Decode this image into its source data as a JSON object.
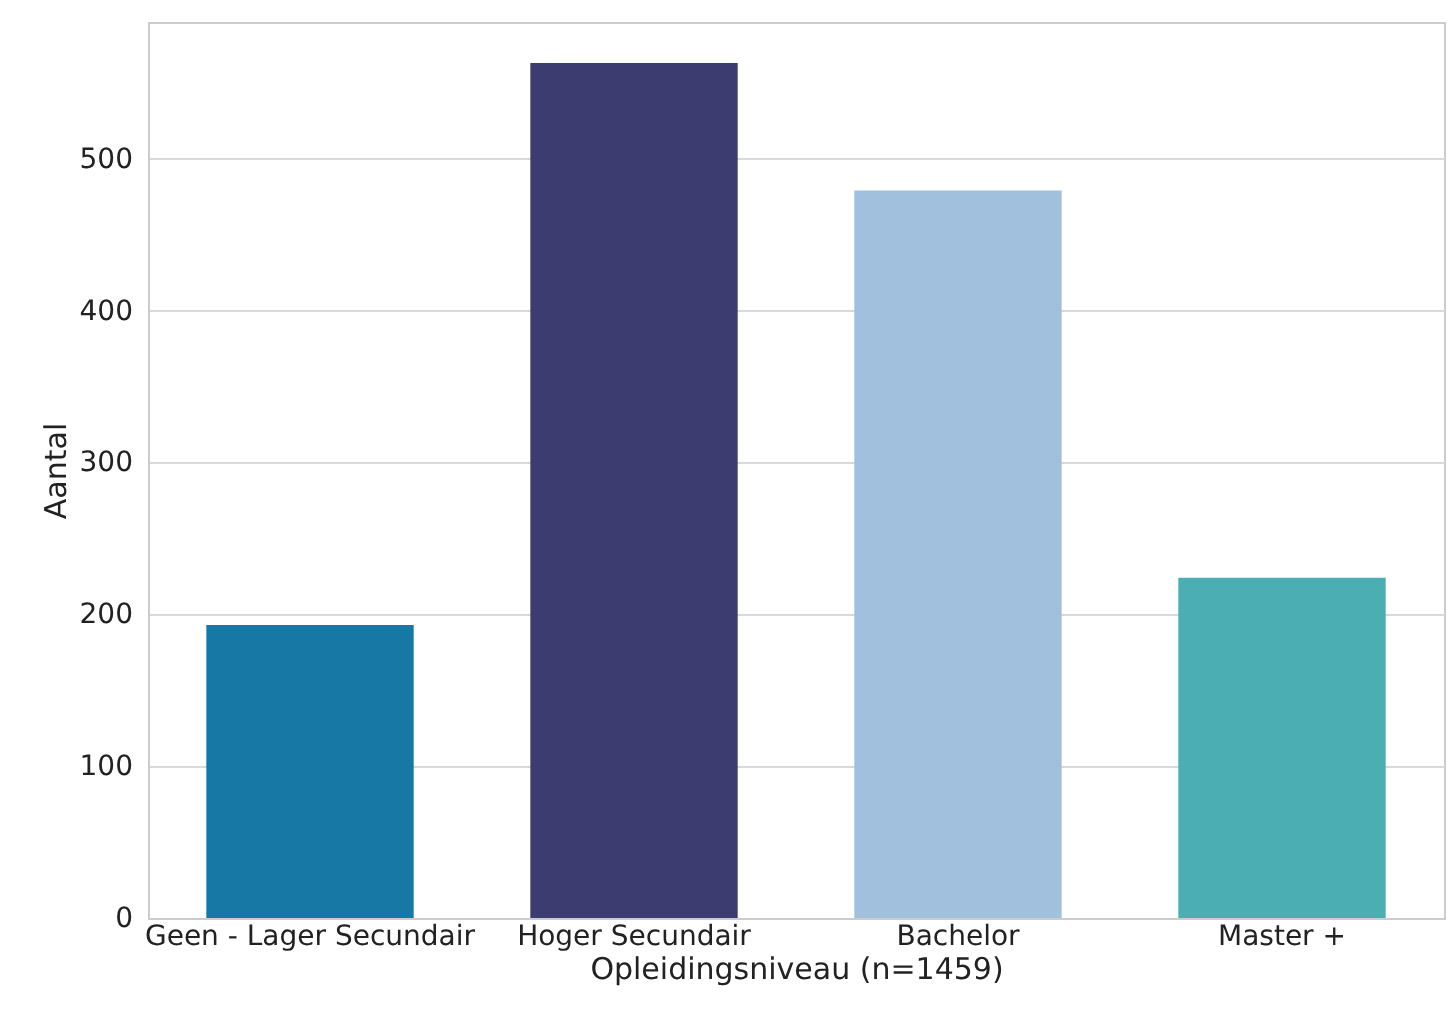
{
  "chart_data": {
    "type": "bar",
    "xlabel": "Opleidingsniveau (n=1459)",
    "ylabel": "Aantal",
    "categories": [
      "Geen - Lager Secundair",
      "Hoger Secundair",
      "Bachelor",
      "Master +"
    ],
    "values": [
      193,
      563,
      479,
      224
    ],
    "colors": [
      "#1777a5",
      "#3c3c70",
      "#a1c0de",
      "#4aaeb2"
    ],
    "ylim": [
      0,
      590
    ],
    "yticks": [
      0,
      100,
      200,
      300,
      400,
      500
    ],
    "grid": "y"
  }
}
